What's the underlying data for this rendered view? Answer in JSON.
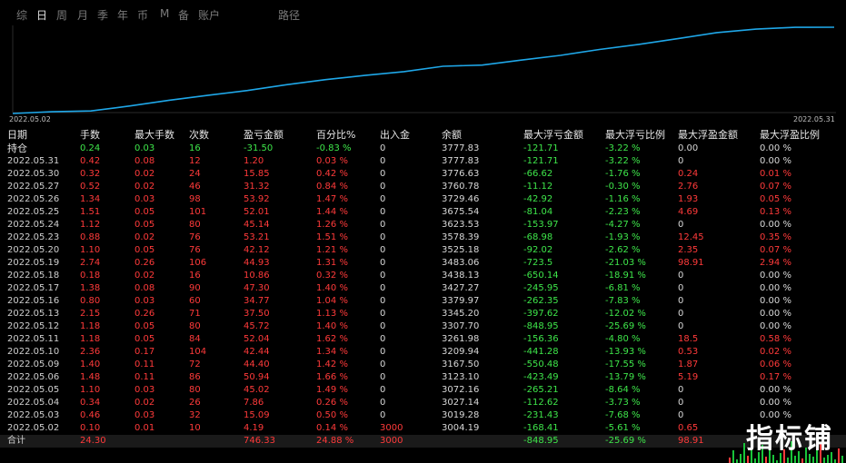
{
  "tabs": [
    "综",
    "日",
    "周",
    "月",
    "季",
    "年",
    "币",
    "M",
    "备",
    "账户",
    "路径"
  ],
  "active_tab": "日",
  "chart": {
    "start_date": "2022.05.02",
    "end_date": "2022.05.31",
    "line_color": "#1fa7e8",
    "values": [
      3004.19,
      3019.28,
      3027.14,
      3072.16,
      3123.1,
      3167.5,
      3209.94,
      3261.98,
      3307.7,
      3345.2,
      3379.97,
      3427.27,
      3438.13,
      3483.06,
      3525.18,
      3578.39,
      3623.53,
      3675.54,
      3729.46,
      3760.78,
      3776.63,
      3777.83
    ]
  },
  "table": {
    "headers": [
      "日期",
      "手数",
      "最大手数",
      "次数",
      "盈亏金额",
      "百分比%",
      "出入金",
      "余额",
      "最大浮亏金额",
      "最大浮亏比例",
      "最大浮盈金额",
      "最大浮盈比例"
    ],
    "position_row": [
      "持仓",
      "0.24",
      "0.03",
      "16",
      "-31.50",
      "-0.83 %",
      "0",
      "3777.83",
      "-121.71",
      "-3.22 %",
      "0.00",
      "0.00 %"
    ],
    "rows": [
      [
        "2022.05.31",
        "0.42",
        "0.08",
        "12",
        "1.20",
        "0.03 %",
        "0",
        "3777.83",
        "-121.71",
        "-3.22 %",
        "0",
        "0.00 %"
      ],
      [
        "2022.05.30",
        "0.32",
        "0.02",
        "24",
        "15.85",
        "0.42 %",
        "0",
        "3776.63",
        "-66.62",
        "-1.76 %",
        "0.24",
        "0.01 %"
      ],
      [
        "2022.05.27",
        "0.52",
        "0.02",
        "46",
        "31.32",
        "0.84 %",
        "0",
        "3760.78",
        "-11.12",
        "-0.30 %",
        "2.76",
        "0.07 %"
      ],
      [
        "2022.05.26",
        "1.34",
        "0.03",
        "98",
        "53.92",
        "1.47 %",
        "0",
        "3729.46",
        "-42.92",
        "-1.16 %",
        "1.93",
        "0.05 %"
      ],
      [
        "2022.05.25",
        "1.51",
        "0.05",
        "101",
        "52.01",
        "1.44 %",
        "0",
        "3675.54",
        "-81.04",
        "-2.23 %",
        "4.69",
        "0.13 %"
      ],
      [
        "2022.05.24",
        "1.12",
        "0.05",
        "80",
        "45.14",
        "1.26 %",
        "0",
        "3623.53",
        "-153.97",
        "-4.27 %",
        "0",
        "0.00 %"
      ],
      [
        "2022.05.23",
        "0.88",
        "0.02",
        "76",
        "53.21",
        "1.51 %",
        "0",
        "3578.39",
        "-68.98",
        "-1.93 %",
        "12.45",
        "0.35 %"
      ],
      [
        "2022.05.20",
        "1.10",
        "0.05",
        "76",
        "42.12",
        "1.21 %",
        "0",
        "3525.18",
        "-92.02",
        "-2.62 %",
        "2.35",
        "0.07 %"
      ],
      [
        "2022.05.19",
        "2.74",
        "0.26",
        "106",
        "44.93",
        "1.31 %",
        "0",
        "3483.06",
        "-723.5",
        "-21.03 %",
        "98.91",
        "2.94 %"
      ],
      [
        "2022.05.18",
        "0.18",
        "0.02",
        "16",
        "10.86",
        "0.32 %",
        "0",
        "3438.13",
        "-650.14",
        "-18.91 %",
        "0",
        "0.00 %"
      ],
      [
        "2022.05.17",
        "1.38",
        "0.08",
        "90",
        "47.30",
        "1.40 %",
        "0",
        "3427.27",
        "-245.95",
        "-6.81 %",
        "0",
        "0.00 %"
      ],
      [
        "2022.05.16",
        "0.80",
        "0.03",
        "60",
        "34.77",
        "1.04 %",
        "0",
        "3379.97",
        "-262.35",
        "-7.83 %",
        "0",
        "0.00 %"
      ],
      [
        "2022.05.13",
        "2.15",
        "0.26",
        "71",
        "37.50",
        "1.13 %",
        "0",
        "3345.20",
        "-397.62",
        "-12.02 %",
        "0",
        "0.00 %"
      ],
      [
        "2022.05.12",
        "1.18",
        "0.05",
        "80",
        "45.72",
        "1.40 %",
        "0",
        "3307.70",
        "-848.95",
        "-25.69 %",
        "0",
        "0.00 %"
      ],
      [
        "2022.05.11",
        "1.18",
        "0.05",
        "84",
        "52.04",
        "1.62 %",
        "0",
        "3261.98",
        "-156.36",
        "-4.80 %",
        "18.5",
        "0.58 %"
      ],
      [
        "2022.05.10",
        "2.36",
        "0.17",
        "104",
        "42.44",
        "1.34 %",
        "0",
        "3209.94",
        "-441.28",
        "-13.93 %",
        "0.53",
        "0.02 %"
      ],
      [
        "2022.05.09",
        "1.40",
        "0.11",
        "72",
        "44.40",
        "1.42 %",
        "0",
        "3167.50",
        "-550.48",
        "-17.55 %",
        "1.87",
        "0.06 %"
      ],
      [
        "2022.05.06",
        "1.48",
        "0.11",
        "86",
        "50.94",
        "1.66 %",
        "0",
        "3123.10",
        "-423.49",
        "-13.79 %",
        "5.19",
        "0.17 %"
      ],
      [
        "2022.05.05",
        "1.10",
        "0.03",
        "80",
        "45.02",
        "1.49 %",
        "0",
        "3072.16",
        "-265.21",
        "-8.64 %",
        "0",
        "0.00 %"
      ],
      [
        "2022.05.04",
        "0.34",
        "0.02",
        "26",
        "7.86",
        "0.26 %",
        "0",
        "3027.14",
        "-112.62",
        "-3.73 %",
        "0",
        "0.00 %"
      ],
      [
        "2022.05.03",
        "0.46",
        "0.03",
        "32",
        "15.09",
        "0.50 %",
        "0",
        "3019.28",
        "-231.43",
        "-7.68 %",
        "0",
        "0.00 %"
      ],
      [
        "2022.05.02",
        "0.10",
        "0.01",
        "10",
        "4.19",
        "0.14 %",
        "3000",
        "3004.19",
        "-168.41",
        "-5.61 %",
        "0.65",
        ""
      ]
    ],
    "total_row": [
      "合计",
      "24.30",
      "",
      "",
      "746.33",
      "24.88 %",
      "3000",
      "",
      "-848.95",
      "-25.69 %",
      "98.91",
      ""
    ]
  },
  "watermark": "指标铺"
}
